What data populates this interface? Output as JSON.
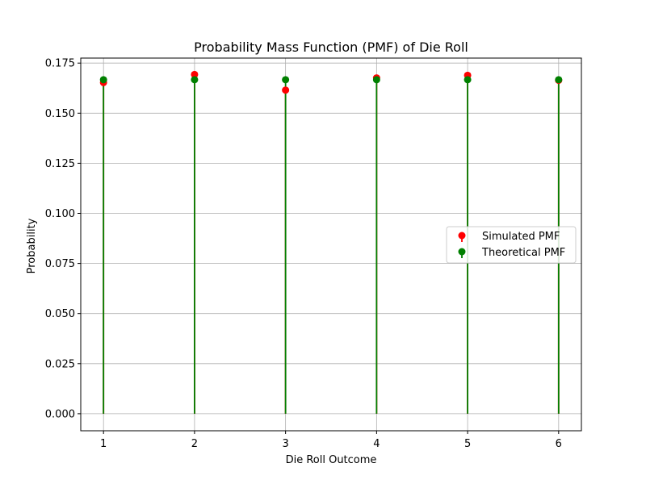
{
  "chart_data": {
    "type": "stem",
    "title": "Probability Mass Function (PMF) of Die Roll",
    "xlabel": "Die Roll Outcome",
    "ylabel": "Probability",
    "x": [
      1,
      2,
      3,
      4,
      5,
      6
    ],
    "x_tick_labels": [
      "1",
      "2",
      "3",
      "4",
      "5",
      "6"
    ],
    "xlim": [
      0.75,
      6.25
    ],
    "ylim": [
      -0.0085,
      0.1775
    ],
    "y_ticks": [
      0.0,
      0.025,
      0.05,
      0.075,
      0.1,
      0.125,
      0.15,
      0.175
    ],
    "y_tick_labels": [
      "0.000",
      "0.025",
      "0.050",
      "0.075",
      "0.100",
      "0.125",
      "0.150",
      "0.175"
    ],
    "grid": true,
    "legend_position": "right",
    "series": [
      {
        "name": "Simulated PMF",
        "color": "#ff0000",
        "values": [
          0.1653,
          0.1693,
          0.1615,
          0.1676,
          0.1689,
          0.1664
        ]
      },
      {
        "name": "Theoretical PMF",
        "color": "#008000",
        "values": [
          0.1667,
          0.1667,
          0.1667,
          0.1667,
          0.1667,
          0.1667
        ]
      }
    ]
  }
}
